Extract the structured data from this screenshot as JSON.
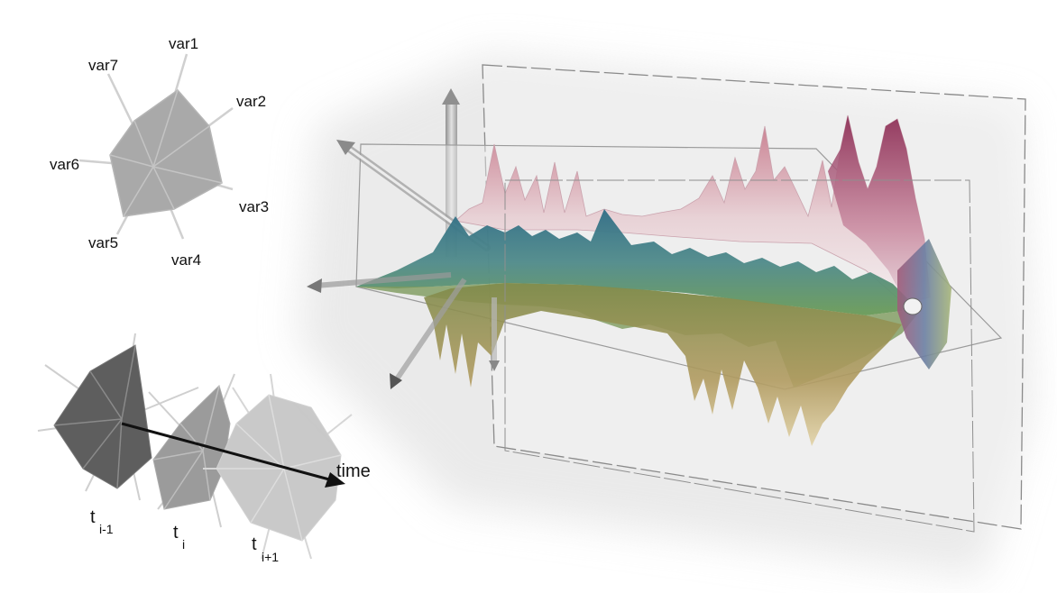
{
  "radar": {
    "axis_labels": [
      "var1",
      "var2",
      "var3",
      "var4",
      "var5",
      "var6",
      "var7"
    ]
  },
  "timeline": {
    "glyphs": [
      {
        "t": "t",
        "sub": "i-1",
        "fill": "#5e5e5e"
      },
      {
        "t": "t",
        "sub": "i",
        "fill": "#9b9b9b"
      },
      {
        "t": "t",
        "sub": "i+1",
        "fill": "#c9c9c9"
      }
    ],
    "arrow_label": "time"
  },
  "colors": {
    "radar_fill": "#a8a8a8",
    "radar_spoke": "#cfcfcf",
    "glow": "#d9d9d9",
    "surface_top": "#e3c7cd",
    "surface_band": "#3f7f8a",
    "surface_green": "#5f8a52",
    "surface_under": "#a8935a"
  }
}
